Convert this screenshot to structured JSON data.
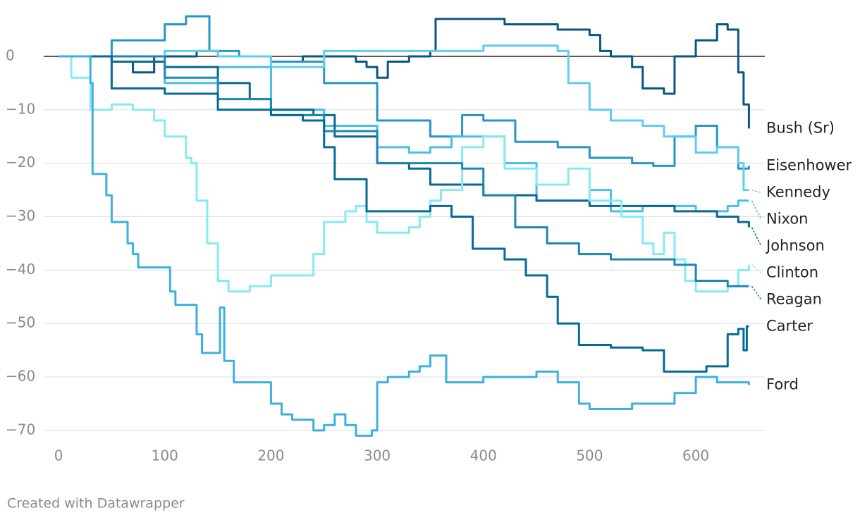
{
  "chart_data": {
    "type": "line",
    "xlim": [
      -14,
      665
    ],
    "ylim": [
      -72,
      8
    ],
    "xticks": [
      0,
      100,
      200,
      300,
      400,
      500,
      600
    ],
    "yticks": [
      0,
      {
        "value": -10,
        "label": "−10"
      },
      {
        "value": -20,
        "label": "−20"
      },
      {
        "value": -30,
        "label": "−30"
      },
      {
        "value": -40,
        "label": "−40"
      },
      {
        "value": -50,
        "label": "−50"
      },
      {
        "value": -60,
        "label": "−60"
      },
      {
        "value": -70,
        "label": "−70"
      }
    ],
    "grid": true,
    "footer": "Created with Datawrapper",
    "series": [
      {
        "name": "Bush (Sr)",
        "color": "#0b5680",
        "x": [
          0,
          30,
          50,
          70,
          90,
          110,
          130,
          150,
          170,
          200,
          230,
          260,
          280,
          290,
          300,
          310,
          330,
          350,
          355,
          380,
          400,
          420,
          450,
          470,
          480,
          500,
          510,
          520,
          540,
          550,
          560,
          570,
          580,
          600,
          620,
          630,
          640,
          645,
          650
        ],
        "values": [
          0,
          0,
          -1,
          -3,
          0,
          0,
          1,
          0,
          0,
          -1,
          0,
          0,
          -1,
          -2,
          -4,
          -1,
          0,
          1,
          7,
          7,
          7,
          6,
          6,
          5,
          5,
          4,
          1,
          0,
          -2,
          -6,
          -6,
          -7,
          0,
          3,
          6,
          5,
          -3,
          -9,
          -13.5
        ]
      },
      {
        "name": "Eisenhower",
        "color": "#2596c6",
        "x": [
          0,
          50,
          100,
          120,
          140,
          142,
          170,
          200,
          240,
          250,
          300,
          350,
          380,
          400,
          430,
          470,
          500,
          540,
          560,
          580,
          600,
          620,
          640,
          650
        ],
        "values": [
          0,
          3,
          6,
          7.5,
          7.5,
          1,
          0,
          -1,
          -1,
          -5,
          -12,
          -15,
          -11,
          -12,
          -16,
          -17,
          -19,
          -20,
          -20.5,
          -15,
          -13,
          -17,
          -21,
          -20.5
        ]
      },
      {
        "name": "Kennedy",
        "color": "#5fcdee",
        "x": [
          0,
          100,
          150,
          200,
          250,
          300,
          350,
          400,
          470,
          480,
          500,
          520,
          550,
          570,
          600,
          620,
          640,
          645,
          650
        ],
        "values": [
          0,
          1,
          0,
          -2,
          1,
          1,
          1,
          2,
          1,
          -5,
          -10,
          -12,
          -13,
          -15,
          -18,
          -17,
          -20,
          -25,
          -25
        ]
      },
      {
        "name": "Nixon",
        "color": "#48bfe6",
        "x": [
          0,
          50,
          100,
          150,
          200,
          250,
          300,
          330,
          350,
          370,
          400,
          420,
          450,
          500,
          520,
          550,
          600,
          630,
          640,
          650
        ],
        "values": [
          0,
          -1,
          -5,
          -2,
          -10,
          -13,
          -17,
          -18,
          -17,
          -15,
          -15,
          -20,
          -27,
          -25,
          -29,
          -28,
          -29,
          -28,
          -27,
          -27
        ]
      },
      {
        "name": "Johnson",
        "color": "#0a6892",
        "x": [
          0,
          50,
          100,
          150,
          180,
          200,
          240,
          260,
          300,
          330,
          350,
          400,
          450,
          480,
          500,
          550,
          580,
          620,
          640,
          650
        ],
        "values": [
          0,
          -1,
          -2,
          -5,
          -8,
          -10,
          -11,
          -15,
          -20,
          -21,
          -24,
          -26,
          -27,
          -27,
          -28,
          -28,
          -29,
          -30,
          -31,
          -32
        ]
      },
      {
        "name": "Clinton",
        "color": "#86e9f6",
        "x": [
          0,
          10,
          12,
          30,
          50,
          70,
          90,
          100,
          120,
          125,
          130,
          140,
          150,
          160,
          180,
          200,
          230,
          240,
          250,
          270,
          280,
          290,
          300,
          330,
          340,
          350,
          360,
          380,
          400,
          420,
          450,
          480,
          500,
          530,
          550,
          560,
          570,
          580,
          590,
          600,
          630,
          640,
          650
        ],
        "values": [
          0,
          0,
          -4,
          -10,
          -9,
          -10,
          -12,
          -15,
          -19,
          -20,
          -27,
          -35,
          -42,
          -44,
          -43,
          -41,
          -41,
          -37,
          -31,
          -29,
          -28,
          -31,
          -33,
          -32,
          -30,
          -27,
          -25,
          -17,
          -15,
          -21,
          -24,
          -21,
          -27,
          -30,
          -35,
          -37,
          -33,
          -38,
          -42,
          -44,
          -43,
          -40,
          -39
        ]
      },
      {
        "name": "Reagan",
        "color": "#1c86b4",
        "x": [
          0,
          50,
          100,
          150,
          200,
          250,
          300,
          350,
          380,
          400,
          430,
          460,
          490,
          520,
          550,
          580,
          600,
          630,
          650
        ],
        "values": [
          0,
          0,
          -4,
          -8,
          -11,
          -14,
          -20,
          -20,
          -21,
          -26,
          -32,
          -35,
          -37,
          -38,
          -38,
          -39,
          -42,
          -43,
          -43
        ]
      },
      {
        "name": "Carter",
        "color": "#066a96",
        "x": [
          0,
          50,
          100,
          150,
          200,
          230,
          250,
          260,
          290,
          320,
          350,
          370,
          390,
          420,
          440,
          460,
          470,
          490,
          520,
          550,
          570,
          590,
          610,
          630,
          640,
          645,
          648,
          650
        ],
        "values": [
          0,
          -6,
          -7,
          -10,
          -11,
          -12,
          -17,
          -23,
          -29,
          -29,
          -28,
          -30,
          -36,
          -38,
          -41,
          -45,
          -50,
          -54,
          -54.5,
          -55,
          -59,
          -59,
          -58,
          -52,
          -51,
          -55,
          -50.5,
          -50.5
        ]
      },
      {
        "name": "Ford",
        "color": "#3db0e0",
        "x": [
          0,
          10,
          25,
          30,
          32,
          40,
          45,
          50,
          60,
          65,
          70,
          75,
          80,
          90,
          100,
          105,
          110,
          125,
          130,
          135,
          150,
          152,
          154,
          156,
          160,
          165,
          180,
          200,
          210,
          220,
          240,
          250,
          260,
          270,
          280,
          290,
          295,
          300,
          310,
          330,
          340,
          350,
          360,
          365,
          400,
          430,
          450,
          470,
          490,
          500,
          520,
          540,
          560,
          580,
          600,
          620,
          640,
          650
        ],
        "values": [
          0,
          0,
          0,
          -5,
          -22,
          -22,
          -26,
          -31,
          -31,
          -35,
          -37,
          -39.5,
          -39.5,
          -39.5,
          -39.5,
          -44,
          -46.5,
          -46.5,
          -52,
          -55.5,
          -55.5,
          -47,
          -47,
          -57,
          -57,
          -61,
          -61,
          -65,
          -67,
          -68,
          -70,
          -69,
          -67,
          -69,
          -71,
          -71,
          -70,
          -61,
          -60,
          -59,
          -58,
          -56,
          -56,
          -61,
          -60,
          -60,
          -59,
          -61,
          -65,
          -66,
          -66,
          -65,
          -65,
          -63,
          -60,
          -61,
          -61,
          -61.5
        ]
      }
    ]
  }
}
